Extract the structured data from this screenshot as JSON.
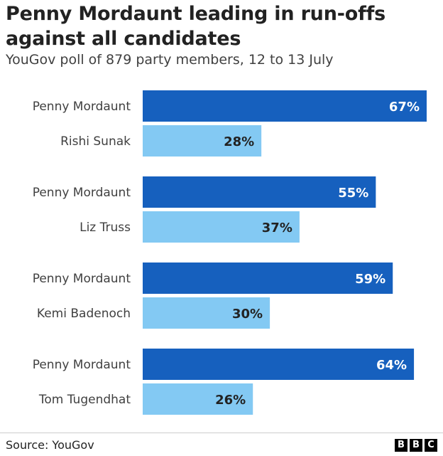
{
  "header": {
    "title": "Penny Mordaunt leading in run-offs against all candidates",
    "subtitle": "YouGov poll of 879 party members, 12 to 13 July"
  },
  "footer": {
    "source": "Source: YouGov",
    "logo_letters": [
      "B",
      "B",
      "C"
    ]
  },
  "colors": {
    "leader": "#1660be",
    "challenger": "#83c9f3"
  },
  "chart_data": {
    "type": "bar",
    "orientation": "horizontal",
    "title": "Penny Mordaunt leading in run-offs against all candidates",
    "subtitle": "YouGov poll of 879 party members, 12 to 13 July",
    "unit": "%",
    "xlim": [
      0,
      100
    ],
    "grid": false,
    "groups": [
      {
        "bars": [
          {
            "label": "Penny Mordaunt",
            "value": 67,
            "role": "leader"
          },
          {
            "label": "Rishi Sunak",
            "value": 28,
            "role": "challenger"
          }
        ]
      },
      {
        "bars": [
          {
            "label": "Penny Mordaunt",
            "value": 55,
            "role": "leader"
          },
          {
            "label": "Liz Truss",
            "value": 37,
            "role": "challenger"
          }
        ]
      },
      {
        "bars": [
          {
            "label": "Penny Mordaunt",
            "value": 59,
            "role": "leader"
          },
          {
            "label": "Kemi Badenoch",
            "value": 30,
            "role": "challenger"
          }
        ]
      },
      {
        "bars": [
          {
            "label": "Penny Mordaunt",
            "value": 64,
            "role": "leader"
          },
          {
            "label": "Tom Tugendhat",
            "value": 26,
            "role": "challenger"
          }
        ]
      }
    ]
  }
}
